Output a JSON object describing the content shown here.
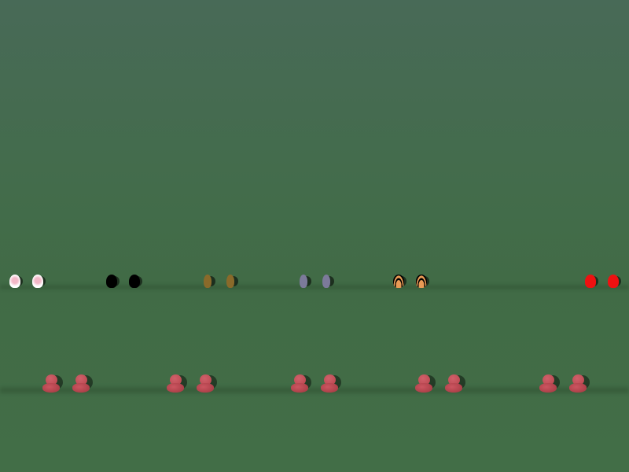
{
  "scene": {
    "background_color": "#436c4b",
    "back_row": [
      {
        "kind": "pink-white-figure",
        "color": "#f3c6d2"
      },
      {
        "kind": "black-figure",
        "color": "#000000"
      },
      {
        "kind": "brown-figure",
        "color": "#8a6a2a"
      },
      {
        "kind": "gray-purple-figure",
        "color": "#7c7a9a"
      },
      {
        "kind": "orange-black-figure",
        "color": "#e89a55"
      },
      {
        "kind": "red-figure",
        "color": "#ee1111"
      }
    ],
    "front_row": {
      "kind": "red-pawn-figure",
      "color": "#b8444c",
      "count": 10
    }
  }
}
